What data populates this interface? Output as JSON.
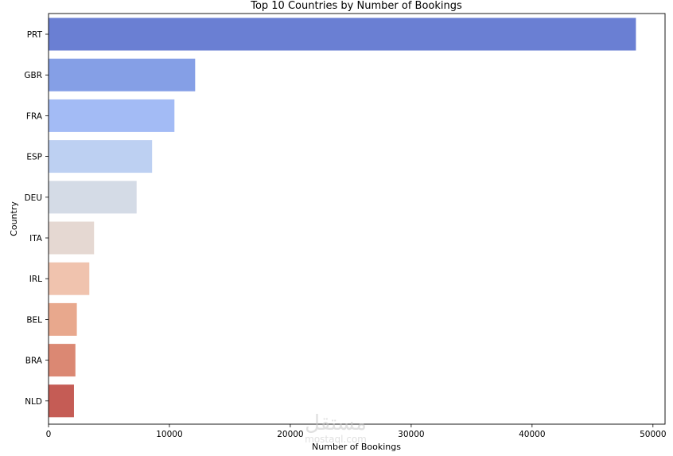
{
  "chart_data": {
    "type": "bar",
    "orientation": "horizontal",
    "title": "Top 10 Countries by Number of Bookings",
    "xlabel": "Number of Bookings",
    "ylabel": "Country",
    "categories": [
      "PRT",
      "GBR",
      "FRA",
      "ESP",
      "DEU",
      "ITA",
      "IRL",
      "BEL",
      "BRA",
      "NLD"
    ],
    "values": [
      48590,
      12129,
      10415,
      8568,
      7287,
      3766,
      3375,
      2342,
      2224,
      2104
    ],
    "colors": [
      "#6a7fd3",
      "#859fe6",
      "#a3bbf5",
      "#bdd0f2",
      "#d4dbe6",
      "#e5d8d2",
      "#f0c3ae",
      "#e8a88d",
      "#db8873",
      "#c55c55"
    ],
    "xlim": [
      0,
      51000
    ],
    "xticks": [
      0,
      10000,
      20000,
      30000,
      40000,
      50000
    ],
    "grid": false,
    "legend": "none"
  },
  "watermark": {
    "text": "مستقل",
    "subtext": "mostaql.com"
  }
}
